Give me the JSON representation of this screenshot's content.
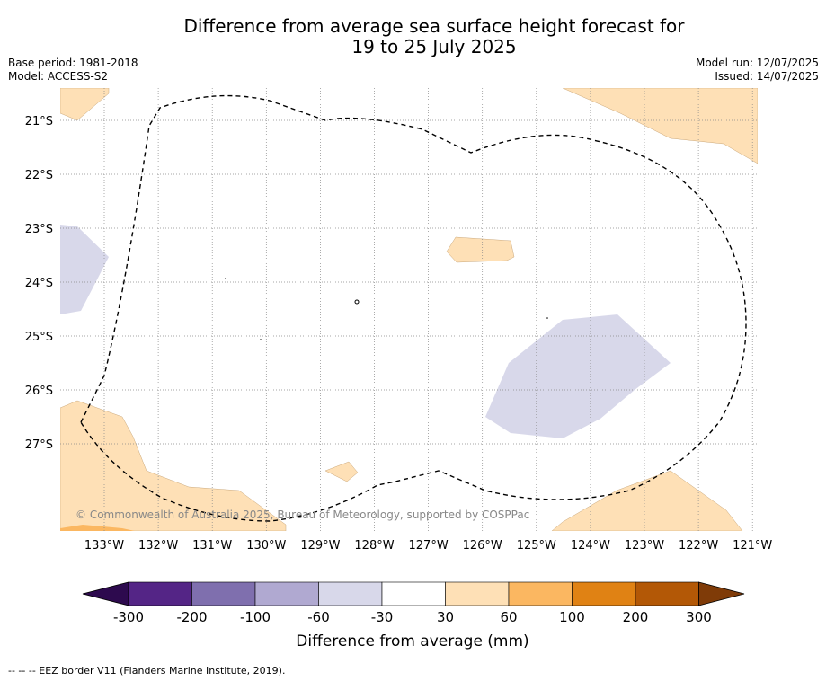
{
  "title_line1": "Difference from average sea surface height forecast for",
  "title_line2": "19 to 25 July 2025",
  "base_period": "Base period: 1981-2018",
  "model": "Model: ACCESS-S2",
  "model_run": "Model run: 12/07/2025",
  "issued": "Issued: 14/07/2025",
  "copyright": "© Commonwealth of Australia 2025, Bureau of Meteorology, supported by COSPPac",
  "footer_note": "--  --  -- EEZ border V11 (Flanders Marine Institute, 2019).",
  "lon_labels": [
    "133°W",
    "132°W",
    "131°W",
    "130°W",
    "129°W",
    "128°W",
    "127°W",
    "126°W",
    "125°W",
    "124°W",
    "123°W",
    "122°W",
    "121°W"
  ],
  "lat_labels": [
    "21°S",
    "22°S",
    "23°S",
    "24°S",
    "25°S",
    "26°S",
    "27°S"
  ],
  "colorbar": {
    "label": "Difference from average (mm)",
    "ticks": [
      "-300",
      "-200",
      "-100",
      "-60",
      "-30",
      "30",
      "60",
      "100",
      "200",
      "300"
    ],
    "colors": [
      "#2d0a4e",
      "#542586",
      "#7f6fae",
      "#b0a9d1",
      "#d8d8ea",
      "#ffffff",
      "#fee0b6",
      "#fbb761",
      "#e08214",
      "#b35806",
      "#7f3b08"
    ]
  },
  "colors": {
    "pos_light": "#fee0b6",
    "pos_mid": "#fbb761",
    "neg_light": "#d8d8ea",
    "eez_line": "#000000",
    "grid": "#888888"
  }
}
